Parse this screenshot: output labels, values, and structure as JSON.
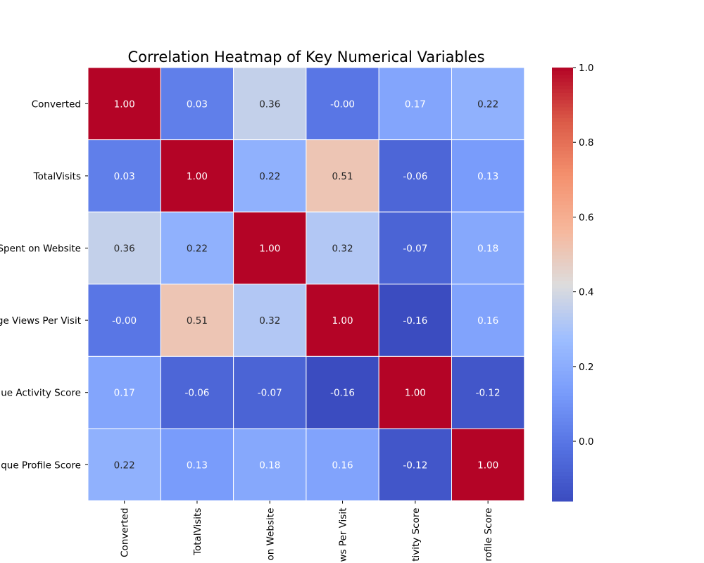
{
  "chart_data": {
    "type": "heatmap",
    "title": "Correlation Heatmap of Key Numerical Variables",
    "xlabel": "",
    "ylabel": "",
    "row_labels": [
      "Converted",
      "TotalVisits",
      "Spent on Website",
      "ge Views Per Visit",
      "ue Activity Score",
      "que Profile Score"
    ],
    "col_labels": [
      "Converted",
      "TotalVisits",
      "on Website",
      "ws Per Visit",
      "tivity Score",
      "rofile Score"
    ],
    "values": [
      [
        1.0,
        0.03,
        0.36,
        -0.0,
        0.17,
        0.22
      ],
      [
        0.03,
        1.0,
        0.22,
        0.51,
        -0.06,
        0.13
      ],
      [
        0.36,
        0.22,
        1.0,
        0.32,
        -0.07,
        0.18
      ],
      [
        -0.0,
        0.51,
        0.32,
        1.0,
        -0.16,
        0.16
      ],
      [
        0.17,
        -0.06,
        -0.07,
        -0.16,
        1.0,
        -0.12
      ],
      [
        0.22,
        0.13,
        0.18,
        0.16,
        -0.12,
        1.0
      ]
    ],
    "value_labels": [
      [
        "1.00",
        "0.03",
        "0.36",
        "-0.00",
        "0.17",
        "0.22"
      ],
      [
        "0.03",
        "1.00",
        "0.22",
        "0.51",
        "-0.06",
        "0.13"
      ],
      [
        "0.36",
        "0.22",
        "1.00",
        "0.32",
        "-0.07",
        "0.18"
      ],
      [
        "-0.00",
        "0.51",
        "0.32",
        "1.00",
        "-0.16",
        "0.16"
      ],
      [
        "0.17",
        "-0.06",
        "-0.07",
        "-0.16",
        "1.00",
        "-0.12"
      ],
      [
        "0.22",
        "0.13",
        "0.18",
        "0.16",
        "-0.12",
        "1.00"
      ]
    ],
    "colormap": "coolwarm",
    "color_range": [
      -0.16,
      1.0
    ],
    "colorbar": {
      "ticks": [
        0.0,
        0.2,
        0.4,
        0.6,
        0.8,
        1.0
      ],
      "tick_labels": [
        "0.0",
        "0.2",
        "0.4",
        "0.6",
        "0.8",
        "1.0"
      ],
      "placement": "right"
    },
    "cell_border_color": "#ffffff",
    "grid": false,
    "legend": "none"
  }
}
